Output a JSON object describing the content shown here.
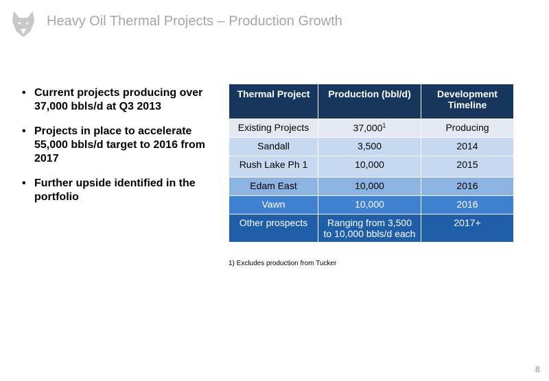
{
  "header": {
    "title": "Heavy Oil Thermal Projects – Production Growth"
  },
  "bullets": [
    "Current projects producing over 37,000 bbls/d at Q3 2013",
    "Projects in place to accelerate 55,000 bbls/d target to 2016 from 2017",
    "Further upside identified in the portfolio"
  ],
  "table": {
    "columns": [
      "Thermal Project",
      "Production  (bbl/d)",
      "Development Timeline"
    ],
    "rows": [
      {
        "cells": [
          "Existing Projects",
          "37,000",
          "Producing"
        ],
        "sup": "1"
      },
      {
        "cells": [
          "Sandall",
          "3,500",
          "2014"
        ]
      },
      {
        "cells": [
          "Rush Lake Ph 1",
          "10,000",
          "2015"
        ]
      },
      {
        "cells": [
          "Edam East",
          "10,000",
          "2016"
        ]
      },
      {
        "cells": [
          "Vawn",
          "10,000",
          "2016"
        ]
      },
      {
        "cells": [
          "Other prospects",
          "Ranging from 3,500 to 10,000 bbls/d each",
          "2017+"
        ]
      }
    ],
    "footnote": "1) Excludes production from Tucker"
  },
  "page_number": "8"
}
